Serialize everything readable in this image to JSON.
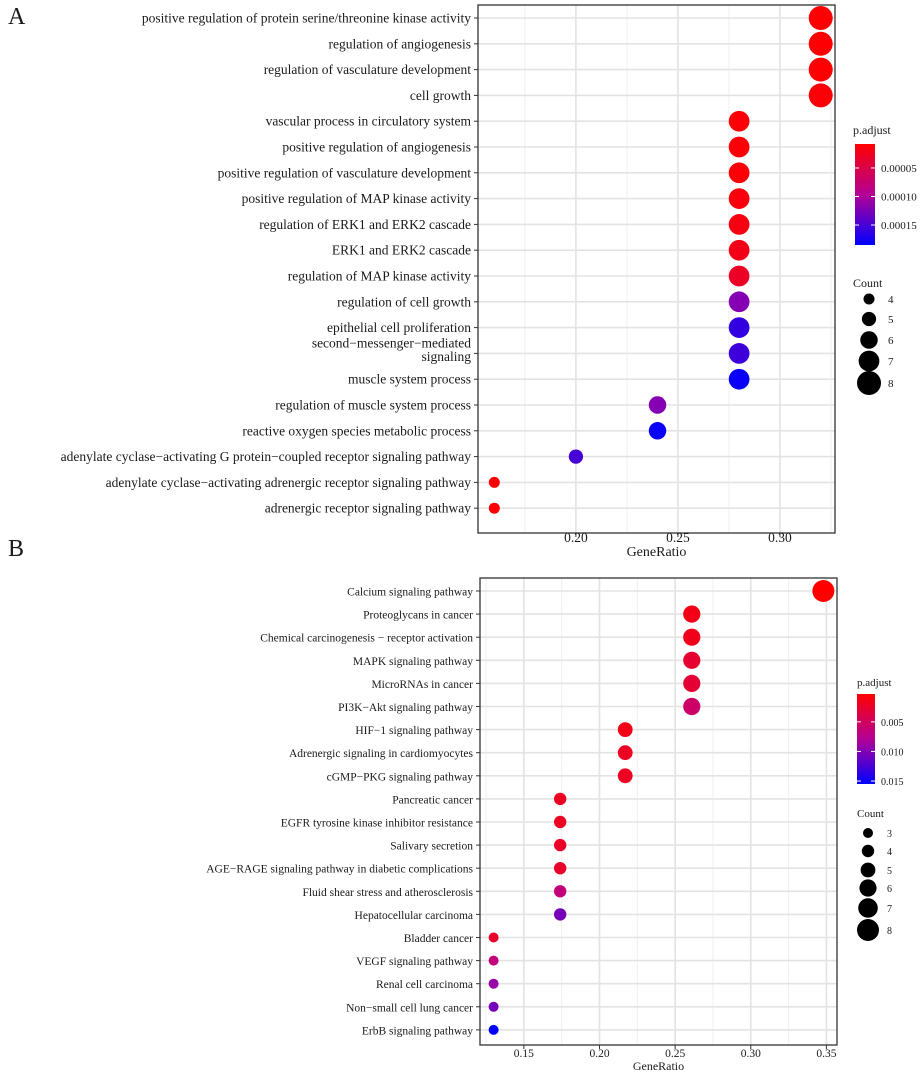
{
  "chart_data": [
    {
      "type": "scatter",
      "panel_label": "A",
      "xlabel": "GeneRatio",
      "ylabel": "",
      "xlim": [
        0.152,
        0.327
      ],
      "xticks": [
        0.2,
        0.25,
        0.3
      ],
      "xtick_labels": [
        "0.20",
        "0.25",
        "0.30"
      ],
      "grid": true,
      "legend_placement": "right",
      "color_legend": {
        "title": "p.adjust",
        "range": [
          8e-06,
          0.000185
        ],
        "ticks": [
          5e-05,
          0.0001,
          0.00015
        ],
        "tick_labels": [
          "0.00005",
          "0.00010",
          "0.00015"
        ],
        "low_color": "#FF0000",
        "high_color": "#0000FF"
      },
      "size_legend": {
        "title": "Count",
        "values": [
          4,
          5,
          6,
          7,
          8
        ],
        "labels": [
          "4",
          "5",
          "6",
          "7",
          "8"
        ]
      },
      "points": [
        {
          "term": "positive regulation of protein serine/threonine kinase activity",
          "x": 0.32,
          "count": 8,
          "p_adjust": 1e-05
        },
        {
          "term": "regulation of angiogenesis",
          "x": 0.32,
          "count": 8,
          "p_adjust": 1e-05
        },
        {
          "term": "regulation of vasculature development",
          "x": 0.32,
          "count": 8,
          "p_adjust": 1e-05
        },
        {
          "term": "cell growth",
          "x": 0.32,
          "count": 8,
          "p_adjust": 1.2e-05
        },
        {
          "term": "vascular process in circulatory system",
          "x": 0.28,
          "count": 7,
          "p_adjust": 1.2e-05
        },
        {
          "term": "positive regulation of angiogenesis",
          "x": 0.28,
          "count": 7,
          "p_adjust": 1.2e-05
        },
        {
          "term": "positive regulation of vasculature development",
          "x": 0.28,
          "count": 7,
          "p_adjust": 1.2e-05
        },
        {
          "term": "positive regulation of MAP kinase activity",
          "x": 0.28,
          "count": 7,
          "p_adjust": 1.5e-05
        },
        {
          "term": "regulation of ERK1 and ERK2 cascade",
          "x": 0.28,
          "count": 7,
          "p_adjust": 1.8e-05
        },
        {
          "term": "ERK1 and ERK2 cascade",
          "x": 0.28,
          "count": 7,
          "p_adjust": 2.2e-05
        },
        {
          "term": "regulation of MAP kinase activity",
          "x": 0.28,
          "count": 7,
          "p_adjust": 3e-05
        },
        {
          "term": "regulation of cell growth",
          "x": 0.28,
          "count": 7,
          "p_adjust": 0.00012
        },
        {
          "term": "epithelial cell proliferation",
          "x": 0.28,
          "count": 7,
          "p_adjust": 0.00016
        },
        {
          "term": "second−messenger−mediated signaling",
          "x": 0.28,
          "count": 7,
          "p_adjust": 0.000155
        },
        {
          "term": "muscle system process",
          "x": 0.28,
          "count": 7,
          "p_adjust": 0.00018
        },
        {
          "term": "regulation of muscle system process",
          "x": 0.24,
          "count": 6,
          "p_adjust": 0.00012
        },
        {
          "term": "reactive oxygen species metabolic process",
          "x": 0.24,
          "count": 6,
          "p_adjust": 0.00018
        },
        {
          "term": "adenylate cyclase−activating G protein−coupled receptor signaling pathway",
          "x": 0.2,
          "count": 5,
          "p_adjust": 0.00015
        },
        {
          "term": "adenylate cyclase−activating adrenergic receptor signaling pathway",
          "x": 0.16,
          "count": 4,
          "p_adjust": 1e-05
        },
        {
          "term": "adrenergic receptor signaling pathway",
          "x": 0.16,
          "count": 4,
          "p_adjust": 1e-05
        }
      ]
    },
    {
      "type": "scatter",
      "panel_label": "B",
      "xlabel": "GeneRatio",
      "ylabel": "",
      "xlim": [
        0.121,
        0.357
      ],
      "xticks": [
        0.15,
        0.2,
        0.25,
        0.3,
        0.35
      ],
      "xtick_labels": [
        "0.15",
        "0.20",
        "0.25",
        "0.30",
        "0.35"
      ],
      "grid": true,
      "legend_placement": "right",
      "color_legend": {
        "title": "p.adjust",
        "range": [
          0.0003,
          0.0155
        ],
        "ticks": [
          0.005,
          0.01,
          0.015
        ],
        "tick_labels": [
          "0.005",
          "0.010",
          "0.015"
        ],
        "low_color": "#FF0000",
        "high_color": "#0000FF"
      },
      "size_legend": {
        "title": "Count",
        "values": [
          3,
          4,
          5,
          6,
          7,
          8
        ],
        "labels": [
          "3",
          "4",
          "5",
          "6",
          "7",
          "8"
        ]
      },
      "points": [
        {
          "term": "Calcium signaling pathway",
          "x": 0.348,
          "count": 8,
          "p_adjust": 0.0003
        },
        {
          "term": "Proteoglycans in cancer",
          "x": 0.261,
          "count": 6,
          "p_adjust": 0.0015
        },
        {
          "term": "Chemical carcinogenesis − receptor activation",
          "x": 0.261,
          "count": 6,
          "p_adjust": 0.0017
        },
        {
          "term": "MAPK signaling pathway",
          "x": 0.261,
          "count": 6,
          "p_adjust": 0.0028
        },
        {
          "term": "MicroRNAs in cancer",
          "x": 0.261,
          "count": 6,
          "p_adjust": 0.003
        },
        {
          "term": "PI3K−Akt signaling pathway",
          "x": 0.261,
          "count": 6,
          "p_adjust": 0.0055
        },
        {
          "term": "HIF−1 signaling pathway",
          "x": 0.217,
          "count": 5,
          "p_adjust": 0.0015
        },
        {
          "term": "Adrenergic signaling in cardiomyocytes",
          "x": 0.217,
          "count": 5,
          "p_adjust": 0.002
        },
        {
          "term": "cGMP−PKG signaling pathway",
          "x": 0.217,
          "count": 5,
          "p_adjust": 0.002
        },
        {
          "term": "Pancreatic cancer",
          "x": 0.174,
          "count": 4,
          "p_adjust": 0.002
        },
        {
          "term": "EGFR tyrosine kinase inhibitor resistance",
          "x": 0.174,
          "count": 4,
          "p_adjust": 0.002
        },
        {
          "term": "Salivary secretion",
          "x": 0.174,
          "count": 4,
          "p_adjust": 0.0022
        },
        {
          "term": "AGE−RAGE signaling pathway in diabetic complications",
          "x": 0.174,
          "count": 4,
          "p_adjust": 0.0025
        },
        {
          "term": "Fluid shear stress and atherosclerosis",
          "x": 0.174,
          "count": 4,
          "p_adjust": 0.0065
        },
        {
          "term": "Hepatocellular carcinoma",
          "x": 0.174,
          "count": 4,
          "p_adjust": 0.0105
        },
        {
          "term": "Bladder cancer",
          "x": 0.13,
          "count": 3,
          "p_adjust": 0.0025
        },
        {
          "term": "VEGF signaling pathway",
          "x": 0.13,
          "count": 3,
          "p_adjust": 0.0065
        },
        {
          "term": "Renal cell carcinoma",
          "x": 0.13,
          "count": 3,
          "p_adjust": 0.009
        },
        {
          "term": "Non−small cell lung cancer",
          "x": 0.13,
          "count": 3,
          "p_adjust": 0.0105
        },
        {
          "term": "ErbB signaling pathway",
          "x": 0.13,
          "count": 3,
          "p_adjust": 0.0155
        }
      ]
    }
  ]
}
